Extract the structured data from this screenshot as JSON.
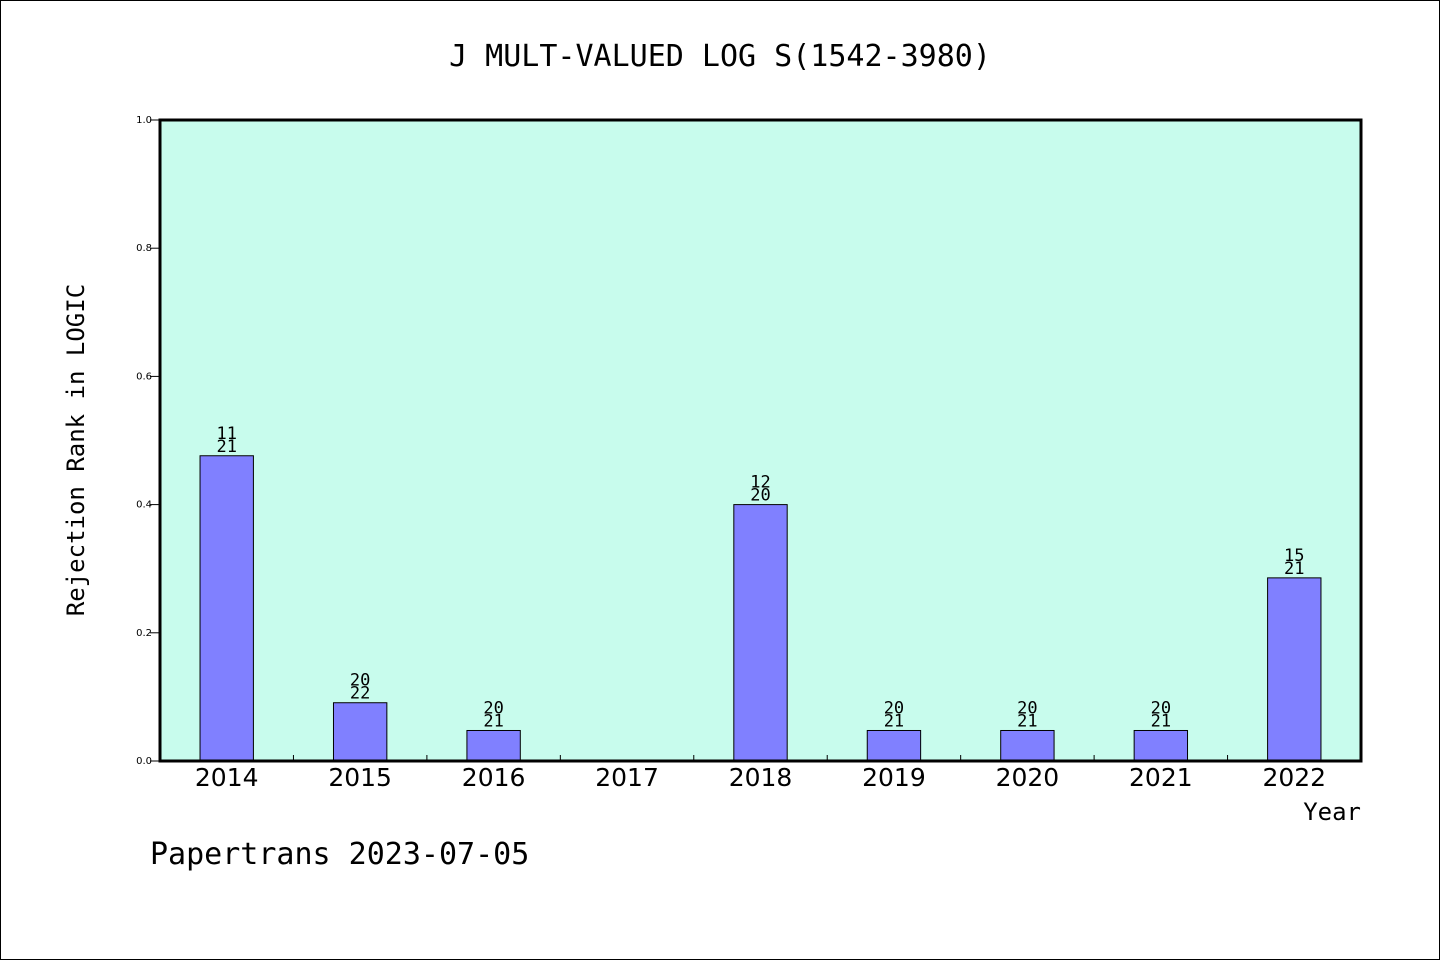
{
  "chart_data": {
    "type": "bar",
    "title": "J MULT-VALUED LOG S(1542-3980)",
    "xlabel": "Year",
    "ylabel": "Rejection Rank in LOGIC",
    "categories": [
      "2014",
      "2015",
      "2016",
      "2017",
      "2018",
      "2019",
      "2020",
      "2021",
      "2022"
    ],
    "values": [
      0.4762,
      0.0909,
      0.0476,
      null,
      0.4,
      0.0476,
      0.0476,
      0.0476,
      0.2857
    ],
    "bar_labels": [
      {
        "top": "11",
        "bottom": "21"
      },
      {
        "top": "20",
        "bottom": "22"
      },
      {
        "top": "20",
        "bottom": "21"
      },
      null,
      {
        "top": "12",
        "bottom": "20"
      },
      {
        "top": "20",
        "bottom": "21"
      },
      {
        "top": "20",
        "bottom": "21"
      },
      {
        "top": "20",
        "bottom": "21"
      },
      {
        "top": "15",
        "bottom": "21"
      }
    ],
    "ylim": [
      0,
      1.0
    ],
    "yticks": [
      "0.0",
      "0.2",
      "0.4",
      "0.6",
      "0.8",
      "1.0"
    ],
    "grid": false,
    "legend": "none",
    "colors": {
      "plot_background": "#c8fced",
      "bar_fill": "#8080ff",
      "bar_stroke": "#000000"
    }
  },
  "footer": {
    "credit": "Papertrans 2023-07-05"
  }
}
